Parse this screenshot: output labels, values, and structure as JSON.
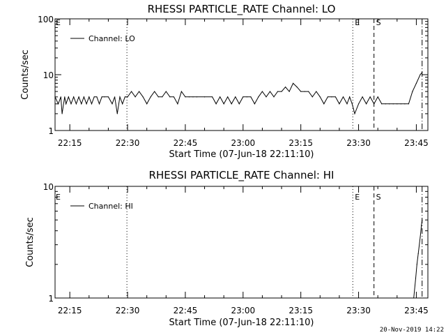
{
  "chart_data": [
    {
      "type": "line",
      "title": "RHESSI PARTICLE_RATE Channel: LO",
      "xlabel": "Start Time (07-Jun-18 22:11:10)",
      "ylabel": "Counts/sec",
      "yscale": "log",
      "ylim": [
        1,
        100
      ],
      "xlim": [
        "22:11:10",
        "23:48:00"
      ],
      "x_ticks": [
        "22:15",
        "22:30",
        "22:45",
        "23:00",
        "23:15",
        "23:30",
        "23:45"
      ],
      "y_ticks": [
        "1",
        "10",
        "100"
      ],
      "legend": {
        "label": "Channel: LO",
        "placement": "top-left"
      },
      "markers": [
        {
          "label": "",
          "time": "22:29:50",
          "style": "dotted"
        },
        {
          "label": "E",
          "time": "23:28:30",
          "style": "dotted"
        },
        {
          "label": "S",
          "time": "23:34:00",
          "style": "dashed"
        },
        {
          "label": "",
          "time": "23:46:30",
          "style": "dash-dot"
        }
      ],
      "corner_label": "E",
      "series": [
        {
          "x": [
            "22:11:10",
            "22:12:00",
            "22:12:40",
            "22:13:00",
            "22:13:40",
            "22:14:00",
            "22:14:40",
            "22:15:20",
            "22:16:00",
            "22:16:40",
            "22:17:20",
            "22:18:00",
            "22:18:40",
            "22:19:20",
            "22:20:00",
            "22:20:40",
            "22:21:20",
            "22:22:00",
            "22:22:40",
            "22:23:20",
            "22:24:00",
            "22:25:00",
            "22:26:00",
            "22:26:40",
            "22:27:20",
            "22:28:00",
            "22:28:40",
            "22:29:20",
            "22:30:00",
            "22:31:00",
            "22:32:00",
            "22:33:00",
            "22:34:00",
            "22:35:00",
            "22:36:00",
            "22:37:00",
            "22:38:00",
            "22:39:00",
            "22:40:00",
            "22:41:00",
            "22:42:00",
            "22:43:00",
            "22:44:00",
            "22:45:00",
            "22:46:00",
            "22:47:00",
            "22:48:00",
            "22:50:00",
            "22:52:00",
            "22:53:00",
            "22:54:00",
            "22:55:00",
            "22:56:00",
            "22:57:00",
            "22:58:00",
            "22:59:00",
            "23:00:00",
            "23:01:00",
            "23:02:00",
            "23:03:00",
            "23:04:00",
            "23:05:00",
            "23:06:00",
            "23:07:00",
            "23:08:00",
            "23:09:00",
            "23:10:00",
            "23:11:00",
            "23:12:00",
            "23:13:00",
            "23:14:00",
            "23:15:00",
            "23:16:00",
            "23:17:00",
            "23:18:00",
            "23:19:00",
            "23:20:00",
            "23:21:00",
            "23:22:00",
            "23:23:00",
            "23:24:00",
            "23:25:00",
            "23:26:00",
            "23:27:00",
            "23:27:40",
            "23:28:20",
            "23:29:00",
            "23:30:00",
            "23:31:00",
            "23:32:00",
            "23:33:00",
            "23:34:00",
            "23:35:00",
            "23:36:00",
            "23:37:00",
            "23:38:00",
            "23:39:00",
            "23:40:00",
            "23:41:00",
            "23:42:00",
            "23:43:00",
            "23:44:00",
            "23:45:00",
            "23:46:00",
            "23:46:30"
          ],
          "y": [
            4,
            3,
            4,
            2,
            4,
            3,
            4,
            3,
            4,
            3,
            4,
            3,
            4,
            3,
            4,
            3,
            4,
            4,
            3,
            4,
            4,
            4,
            3,
            4,
            2,
            4,
            3,
            4,
            4,
            5,
            4,
            5,
            4,
            3,
            4,
            5,
            4,
            4,
            5,
            4,
            4,
            3,
            5,
            4,
            4,
            4,
            4,
            4,
            4,
            3,
            4,
            3,
            4,
            3,
            4,
            3,
            4,
            4,
            4,
            3,
            4,
            5,
            4,
            5,
            4,
            5,
            5,
            6,
            5,
            7,
            6,
            5,
            5,
            5,
            4,
            5,
            4,
            3,
            4,
            4,
            4,
            3,
            4,
            3,
            4,
            3,
            2,
            3,
            4,
            3,
            4,
            3,
            4,
            3,
            3,
            3,
            3,
            3,
            3,
            3,
            3,
            5,
            7,
            10,
            11
          ]
        }
      ]
    },
    {
      "type": "line",
      "title": "RHESSI PARTICLE_RATE Channel: HI",
      "xlabel": "Start Time (07-Jun-18 22:11:10)",
      "ylabel": "Counts/sec",
      "yscale": "log",
      "ylim": [
        1,
        10
      ],
      "xlim": [
        "22:11:10",
        "23:48:00"
      ],
      "x_ticks": [
        "22:15",
        "22:30",
        "22:45",
        "23:00",
        "23:15",
        "23:30",
        "23:45"
      ],
      "y_ticks": [
        "1",
        "10"
      ],
      "legend": {
        "label": "Channel: HI",
        "placement": "top-left"
      },
      "markers": [
        {
          "label": "",
          "time": "22:29:50",
          "style": "dotted"
        },
        {
          "label": "E",
          "time": "23:28:30",
          "style": "dotted"
        },
        {
          "label": "S",
          "time": "23:34:00",
          "style": "dashed"
        },
        {
          "label": "",
          "time": "23:46:30",
          "style": "dash-dot"
        }
      ],
      "corner_label": "E",
      "series": [
        {
          "x": [
            "23:44:20",
            "23:44:50",
            "23:45:10",
            "23:45:30",
            "23:46:00",
            "23:46:20",
            "23:46:30"
          ],
          "y": [
            1,
            1.5,
            2,
            2.5,
            3.5,
            4.5,
            5
          ]
        }
      ]
    }
  ],
  "footer": {
    "timestamp": "20-Nov-2019 14:22"
  },
  "colors": {
    "background": "#ffffff",
    "ink": "#000000"
  }
}
